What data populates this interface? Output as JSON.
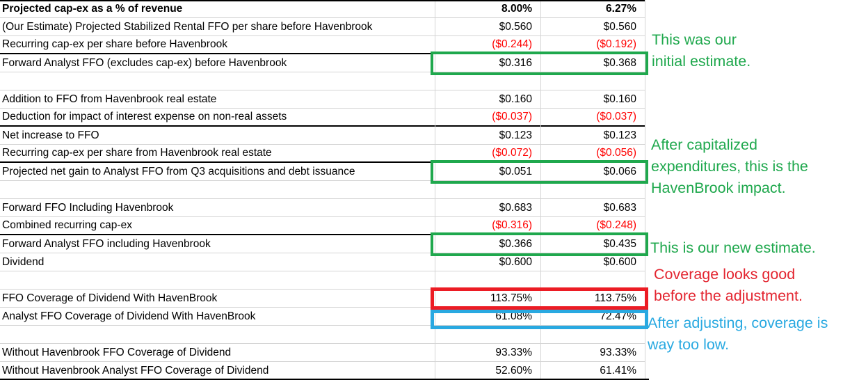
{
  "table": {
    "rows": [
      {
        "label": "Projected cap-ex as a % of revenue",
        "v1": "8.00%",
        "v2": "6.27%",
        "bold": true
      },
      {
        "label": "(Our Estimate) Projected Stabilized Rental FFO per share before Havenbrook",
        "v1": "$0.560",
        "v2": "$0.560"
      },
      {
        "label": "Recurring cap-ex per share before Havenbrook",
        "v1": "($0.244)",
        "v2": "($0.192)",
        "border_bottom": true
      },
      {
        "label": "Forward Analyst FFO (excludes cap-ex) before Havenbrook",
        "v1": "$0.316",
        "v2": "$0.368",
        "box": "green"
      },
      {
        "label": "",
        "v1": "",
        "v2": ""
      },
      {
        "label": "Addition to FFO from Havenbrook real estate",
        "v1": "$0.160",
        "v2": "$0.160"
      },
      {
        "label": "Deduction for impact of interest expense on non-real assets",
        "v1": "($0.037)",
        "v2": "($0.037)",
        "border_bottom": true
      },
      {
        "label": "Net increase to FFO",
        "v1": "$0.123",
        "v2": "$0.123"
      },
      {
        "label": "Recurring cap-ex per share from Havenbrook real estate",
        "v1": "($0.072)",
        "v2": "($0.056)",
        "border_bottom": true
      },
      {
        "label": "Projected net gain to Analyst FFO from Q3 acquisitions and debt issuance",
        "v1": "$0.051",
        "v2": "$0.066",
        "box": "green"
      },
      {
        "label": "",
        "v1": "",
        "v2": ""
      },
      {
        "label": "Forward FFO Including Havenbrook",
        "v1": "$0.683",
        "v2": "$0.683"
      },
      {
        "label": "Combined recurring cap-ex",
        "v1": "($0.316)",
        "v2": "($0.248)",
        "border_bottom": true
      },
      {
        "label": "Forward Analyst FFO including Havenbrook",
        "v1": "$0.366",
        "v2": "$0.435",
        "box": "green"
      },
      {
        "label": "Dividend",
        "v1": "$0.600",
        "v2": "$0.600"
      },
      {
        "label": "",
        "v1": "",
        "v2": ""
      },
      {
        "label": "FFO Coverage of Dividend With HavenBrook",
        "v1": "113.75%",
        "v2": "113.75%",
        "box": "red"
      },
      {
        "label": "Analyst FFO Coverage of Dividend With HavenBrook",
        "v1": "61.08%",
        "v2": "72.47%",
        "box": "blue"
      },
      {
        "label": "",
        "v1": "",
        "v2": ""
      },
      {
        "label": "Without Havenbrook FFO Coverage of Dividend",
        "v1": "93.33%",
        "v2": "93.33%"
      },
      {
        "label": "Without Havenbrook Analyst FFO Coverage of Dividend",
        "v1": "52.60%",
        "v2": "61.41%"
      }
    ]
  },
  "annotations": [
    {
      "color": "green",
      "lines": [
        "This was our",
        "initial estimate."
      ]
    },
    {
      "color": "green",
      "lines": [
        "After capitalized",
        "expenditures, this is the",
        "HavenBrook impact."
      ]
    },
    {
      "color": "green",
      "lines": [
        "This is our new estimate."
      ]
    },
    {
      "color": "red",
      "lines": [
        "Coverage looks good",
        "before the adjustment."
      ]
    },
    {
      "color": "blue",
      "lines": [
        "After adjusting, coverage is",
        "way too low."
      ]
    }
  ],
  "colors": {
    "green": "#1FA84D",
    "red_box": "#EC1C24",
    "red_text": "#E32530",
    "blue": "#29A9E1",
    "negative": "#FF0000",
    "gridline": "#D4D4D4"
  }
}
